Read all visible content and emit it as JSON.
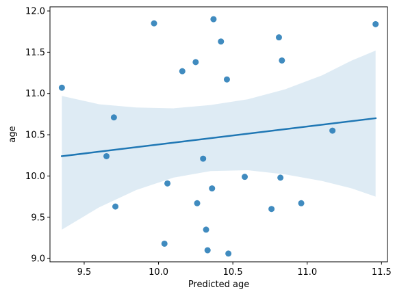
{
  "chart_data": {
    "type": "scatter",
    "title": "",
    "xlabel": "Predicted age",
    "ylabel": "age",
    "xlim": [
      9.27,
      11.54
    ],
    "ylim": [
      8.96,
      12.05
    ],
    "x_ticks": [
      9.5,
      10.0,
      10.5,
      11.0,
      11.5
    ],
    "x_tick_labels": [
      "9.5",
      "10.0",
      "10.5",
      "11.0",
      "11.5"
    ],
    "y_ticks": [
      9.0,
      9.5,
      10.0,
      10.5,
      11.0,
      11.5,
      12.0
    ],
    "y_tick_labels": [
      "9.0",
      "9.5",
      "10.0",
      "10.5",
      "11.0",
      "11.5",
      "12.0"
    ],
    "grid": false,
    "legend": "none",
    "point_color": "#1f77b4",
    "points": [
      {
        "x": 9.35,
        "y": 11.07
      },
      {
        "x": 9.65,
        "y": 10.24
      },
      {
        "x": 9.7,
        "y": 10.71
      },
      {
        "x": 9.71,
        "y": 9.63
      },
      {
        "x": 9.97,
        "y": 11.85
      },
      {
        "x": 10.04,
        "y": 9.18
      },
      {
        "x": 10.06,
        "y": 9.91
      },
      {
        "x": 10.16,
        "y": 11.27
      },
      {
        "x": 10.25,
        "y": 11.38
      },
      {
        "x": 10.26,
        "y": 9.67
      },
      {
        "x": 10.3,
        "y": 10.21
      },
      {
        "x": 10.32,
        "y": 9.35
      },
      {
        "x": 10.33,
        "y": 9.1
      },
      {
        "x": 10.36,
        "y": 9.85
      },
      {
        "x": 10.37,
        "y": 11.9
      },
      {
        "x": 10.42,
        "y": 11.63
      },
      {
        "x": 10.46,
        "y": 11.17
      },
      {
        "x": 10.47,
        "y": 9.06
      },
      {
        "x": 10.58,
        "y": 9.99
      },
      {
        "x": 10.76,
        "y": 9.6
      },
      {
        "x": 10.81,
        "y": 11.68
      },
      {
        "x": 10.82,
        "y": 9.98
      },
      {
        "x": 10.83,
        "y": 11.4
      },
      {
        "x": 10.96,
        "y": 9.67
      },
      {
        "x": 11.17,
        "y": 10.55
      },
      {
        "x": 11.46,
        "y": 11.84
      }
    ],
    "regression": {
      "color": "#1f77b4",
      "start": {
        "x": 9.35,
        "y": 10.24
      },
      "end": {
        "x": 11.46,
        "y": 10.7
      }
    },
    "confidence_band": {
      "color": "#1f77b4",
      "x": [
        9.35,
        9.6,
        9.85,
        10.1,
        10.35,
        10.6,
        10.85,
        11.1,
        11.3,
        11.46
      ],
      "upper": [
        10.97,
        10.87,
        10.83,
        10.82,
        10.86,
        10.93,
        11.05,
        11.22,
        11.4,
        11.52
      ],
      "lower": [
        9.35,
        9.62,
        9.83,
        9.98,
        10.06,
        10.07,
        10.02,
        9.94,
        9.85,
        9.75
      ]
    }
  }
}
